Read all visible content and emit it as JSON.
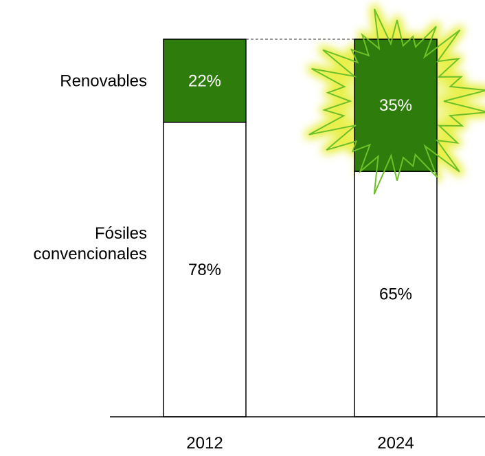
{
  "chart_data": {
    "type": "bar",
    "stacked": true,
    "percent": true,
    "categories": [
      "2012",
      "2024"
    ],
    "series": [
      {
        "name": "Fósiles convencionales",
        "legend_lines": [
          "Fósiles",
          "convencionales"
        ],
        "values": [
          78,
          65
        ],
        "labels": [
          "78%",
          "65%"
        ],
        "color": "#ffffff"
      },
      {
        "name": "Renovables",
        "legend_lines": [
          "Renovables"
        ],
        "values": [
          22,
          35
        ],
        "labels": [
          "22%",
          "35%"
        ],
        "color": "#2e7d0c"
      }
    ],
    "ylim": [
      0,
      100
    ],
    "grid": false,
    "legend": "left",
    "highlight": {
      "category": "2024",
      "series": "Renovables",
      "style": "starburst",
      "color": "#6fbf2a",
      "glow": "#e8f04a"
    }
  }
}
